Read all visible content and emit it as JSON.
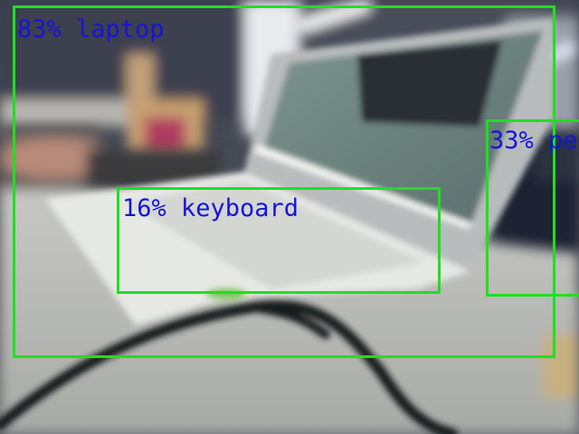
{
  "detections": [
    {
      "label_text": "83% laptop",
      "score": 0.83,
      "class": "laptop"
    },
    {
      "label_text": "16% keyboard",
      "score": 0.16,
      "class": "keyboard"
    },
    {
      "label_text": "33% pe",
      "score": 0.33,
      "class": "person"
    }
  ],
  "colors": {
    "box": "#1ee01e",
    "label": "#1414d8"
  }
}
